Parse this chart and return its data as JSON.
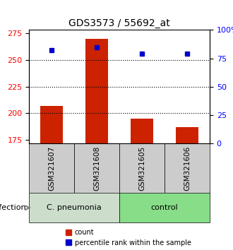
{
  "title": "GDS3573 / 55692_at",
  "samples": [
    "GSM321607",
    "GSM321608",
    "GSM321605",
    "GSM321606"
  ],
  "bar_values": [
    207,
    270,
    195,
    187
  ],
  "percentile_values": [
    82,
    85,
    79,
    79
  ],
  "bar_color": "#cc2200",
  "percentile_color": "#0000cc",
  "ylim_left": [
    172,
    278
  ],
  "ylim_right": [
    0,
    100
  ],
  "yticks_left": [
    175,
    200,
    225,
    250,
    275
  ],
  "yticks_right": [
    0,
    25,
    50,
    75,
    100
  ],
  "ytick_labels_right": [
    "0",
    "25",
    "50",
    "75",
    "100%"
  ],
  "grid_values": [
    200,
    225,
    250
  ],
  "groups": [
    {
      "label": "C. pneumonia",
      "color": "#ccddcc",
      "indices": [
        0,
        1
      ]
    },
    {
      "label": "control",
      "color": "#88dd88",
      "indices": [
        2,
        3
      ]
    }
  ],
  "group_label": "infection",
  "legend_items": [
    {
      "label": "count",
      "color": "#cc2200",
      "marker": "s"
    },
    {
      "label": "percentile rank within the sample",
      "color": "#0000cc",
      "marker": "s"
    }
  ],
  "bar_bottom": 172,
  "sample_box_color": "#cccccc",
  "bar_width": 0.5
}
